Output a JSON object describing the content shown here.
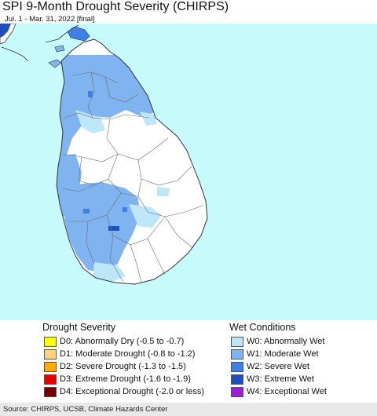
{
  "header": {
    "title": "SPI 9-Month Drought Severity (CHIRPS)",
    "subtitle": "Jul. 1 - Mar. 31, 2022 [final]"
  },
  "colors": {
    "ocean": "#c7fbfb",
    "land": "#ffffff",
    "boundary": "#6b6b6b",
    "W0": "#bde6f9",
    "W1": "#7fb4f0",
    "W2": "#3f7fe8",
    "W3": "#1f4fbf",
    "W4": "#9b1fd8"
  },
  "legend": {
    "drought": {
      "title": "Drought Severity",
      "items": [
        {
          "code": "D0",
          "label": "D0: Abnormally Dry (-0.5 to -0.7)",
          "color": "#ffff00"
        },
        {
          "code": "D1",
          "label": "D1: Moderate Drought (-0.8 to -1.2)",
          "color": "#fcd37f"
        },
        {
          "code": "D2",
          "label": "D2: Severe Drought (-1.3 to -1.5)",
          "color": "#ffaa00"
        },
        {
          "code": "D3",
          "label": "D3: Extreme Drought (-1.6 to -1.9)",
          "color": "#e60000"
        },
        {
          "code": "D4",
          "label": "D4: Exceptional Drought (-2.0 or less)",
          "color": "#730000"
        }
      ]
    },
    "wet": {
      "title": "Wet Conditions",
      "items": [
        {
          "code": "W0",
          "label": "W0: Abnormally Wet",
          "color": "#bde6f9"
        },
        {
          "code": "W1",
          "label": "W1: Moderate Wet",
          "color": "#7fb4f0"
        },
        {
          "code": "W2",
          "label": "W2: Severe Wet",
          "color": "#3f7fe8"
        },
        {
          "code": "W3",
          "label": "W3: Extreme Wet",
          "color": "#1f4fbf"
        },
        {
          "code": "W4",
          "label": "W4: Exceptional Wet",
          "color": "#9b1fd8"
        }
      ]
    }
  },
  "footer": {
    "source": "Source: CHIRPS, UCSB, Climate Hazards Center"
  }
}
